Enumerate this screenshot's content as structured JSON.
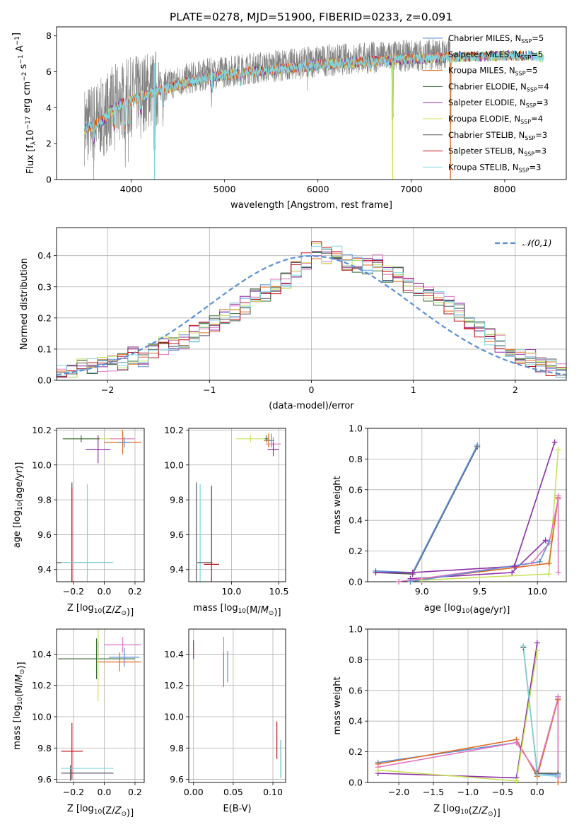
{
  "figure": {
    "title": "PLATE=0278, MJD=51900, FIBERID=0233, z=0.091"
  },
  "colors": {
    "chabrier_miles": "#5b8fd6",
    "salpeter_miles": "#e377c2",
    "kroupa_miles": "#e06a1c",
    "chabrier_elodie": "#3a6b3a",
    "salpeter_elodie": "#8e2fa6",
    "kroupa_elodie": "#c7e35a",
    "chabrier_stelib": "#555555",
    "salpeter_stelib": "#c0121a",
    "kroupa_stelib": "#7fd6e0",
    "data": "#808080",
    "normal": "#5b8fd6"
  },
  "chart_data": [
    {
      "id": "spectrum",
      "type": "line",
      "title": "PLATE=0278, MJD=51900, FIBERID=0233, z=0.091",
      "xlabel": "wavelength [Angstrom, rest frame]",
      "ylabel": "Flux [f_λ10^-17 erg cm^-2 s^-1 A^-1]",
      "xlim": [
        3200,
        8660
      ],
      "ylim": [
        0,
        8.5
      ],
      "xticks": [
        4000,
        5000,
        6000,
        7000,
        8000
      ],
      "yticks": [
        0,
        2,
        4,
        6,
        8
      ],
      "legend_position": "right",
      "legend": [
        {
          "key": "chabrier_miles",
          "label": "Chabrier MILES, N",
          "sub": "SSP",
          "n": "=5"
        },
        {
          "key": "salpeter_miles",
          "label": "Salpeter MILES, N",
          "sub": "SSP",
          "n": "=5"
        },
        {
          "key": "kroupa_miles",
          "label": "Kroupa MILES, N",
          "sub": "SSP",
          "n": "=5"
        },
        {
          "key": "chabrier_elodie",
          "label": "Chabrier ELODIE, N",
          "sub": "SSP",
          "n": "=4"
        },
        {
          "key": "salpeter_elodie",
          "label": "Salpeter ELODIE, N",
          "sub": "SSP",
          "n": "=3"
        },
        {
          "key": "kroupa_elodie",
          "label": "Kroupa ELODIE, N",
          "sub": "SSP",
          "n": "=4"
        },
        {
          "key": "chabrier_stelib",
          "label": "Chabrier STELIB, N",
          "sub": "SSP",
          "n": "=3"
        },
        {
          "key": "salpeter_stelib",
          "label": "Salpeter STELIB, N",
          "sub": "SSP",
          "n": "=3"
        },
        {
          "key": "kroupa_stelib",
          "label": "Kroupa STELIB, N",
          "sub": "SSP",
          "n": "=3"
        }
      ],
      "continuum": [
        [
          3500,
          3.0
        ],
        [
          3700,
          3.5
        ],
        [
          3800,
          4.1
        ],
        [
          3900,
          4.4
        ],
        [
          4000,
          4.6
        ],
        [
          4200,
          5.0
        ],
        [
          4400,
          5.3
        ],
        [
          4600,
          5.6
        ],
        [
          4800,
          5.85
        ],
        [
          5000,
          6.0
        ],
        [
          5200,
          6.15
        ],
        [
          5500,
          6.3
        ],
        [
          5800,
          6.45
        ],
        [
          6000,
          6.6
        ],
        [
          6300,
          6.7
        ],
        [
          6600,
          6.8
        ],
        [
          7000,
          6.9
        ],
        [
          7400,
          7.0
        ],
        [
          7700,
          7.05
        ],
        [
          8000,
          7.1
        ],
        [
          8300,
          7.1
        ],
        [
          8400,
          7.0
        ]
      ],
      "data_range": [
        3500,
        7420
      ],
      "model_range": [
        3500,
        8420
      ],
      "absorption_lines": [
        [
          3600,
          1.5
        ],
        [
          3820,
          1.8
        ],
        [
          3934,
          2.4
        ],
        [
          3970,
          2.0
        ],
        [
          4102,
          1.5
        ],
        [
          4250,
          6.0
        ],
        [
          4340,
          1.5
        ],
        [
          4861,
          1.2
        ],
        [
          5175,
          0.9
        ],
        [
          5890,
          0.8
        ],
        [
          6563,
          0.6
        ],
        [
          6800,
          6.2
        ],
        [
          7420,
          7.0
        ]
      ]
    },
    {
      "id": "residuals",
      "type": "histogram",
      "xlabel": "(data-model)/error",
      "ylabel": "Normed distribution",
      "xlim": [
        -2.5,
        2.5
      ],
      "ylim": [
        0,
        0.49
      ],
      "xticks": [
        -2,
        -1,
        0,
        1,
        2
      ],
      "yticks": [
        0.0,
        0.1,
        0.2,
        0.3,
        0.4
      ],
      "legend_position": "top-right",
      "normal_label": "𝒩(0,1)",
      "bins": 50,
      "base_profile": [
        0.02,
        0.03,
        0.04,
        0.04,
        0.05,
        0.05,
        0.06,
        0.08,
        0.07,
        0.09,
        0.11,
        0.12,
        0.13,
        0.15,
        0.16,
        0.18,
        0.2,
        0.22,
        0.24,
        0.28,
        0.28,
        0.3,
        0.32,
        0.36,
        0.38,
        0.42,
        0.4,
        0.41,
        0.38,
        0.37,
        0.37,
        0.38,
        0.34,
        0.34,
        0.3,
        0.3,
        0.28,
        0.26,
        0.24,
        0.22,
        0.18,
        0.16,
        0.14,
        0.12,
        0.1,
        0.08,
        0.07,
        0.05,
        0.04,
        0.03
      ]
    },
    {
      "id": "age_vs_Z",
      "type": "errorbar",
      "xlabel": "Z [log10(Z/Z⊙)]",
      "ylabel": "age [log10(age/yr)]",
      "xlim": [
        -0.31,
        0.26
      ],
      "ylim": [
        9.33,
        10.21
      ],
      "xticks": [
        -0.2,
        0.0,
        0.2
      ],
      "yticks": [
        9.4,
        9.6,
        9.8,
        10.0,
        10.2
      ],
      "points": [
        {
          "key": "kroupa_elodie",
          "x": -0.04,
          "y": 10.15,
          "xerr": 0.22,
          "yerr": 0.02
        },
        {
          "key": "salpeter_miles",
          "x": 0.12,
          "y": 10.15,
          "xerr": 0.08,
          "yerr": 0.04
        },
        {
          "key": "kroupa_miles",
          "x": 0.12,
          "y": 10.13,
          "xerr": 0.12,
          "yerr": 0.07
        },
        {
          "key": "chabrier_elodie",
          "x": -0.15,
          "y": 10.15,
          "xerr": 0.12,
          "yerr": 0.02
        },
        {
          "key": "salpeter_elodie",
          "x": -0.04,
          "y": 10.09,
          "xerr": 0.08,
          "yerr": 0.08
        },
        {
          "key": "chabrier_miles",
          "x": 0.13,
          "y": 10.13,
          "xerr": 0.04,
          "yerr": 0.03
        },
        {
          "key": "chabrier_stelib",
          "x": -0.21,
          "y": 9.44,
          "xerr": 0.26,
          "yerr": 0.46
        },
        {
          "key": "salpeter_stelib",
          "x": -0.21,
          "y": 9.44,
          "xerr": 0.0,
          "yerr": 0.43
        },
        {
          "key": "kroupa_stelib",
          "x": -0.11,
          "y": 9.44,
          "xerr": 0.17,
          "yerr": 0.45
        }
      ]
    },
    {
      "id": "age_vs_mass",
      "type": "errorbar",
      "xlabel": "mass [log10(M/M⊙)]",
      "ylabel": "",
      "xlim": [
        9.55,
        10.57
      ],
      "ylim": [
        9.33,
        10.21
      ],
      "xticks": [
        10.0,
        10.5
      ],
      "yticks": [
        9.4,
        9.6,
        9.8,
        10.0,
        10.2
      ],
      "points": [
        {
          "key": "kroupa_elodie",
          "x": 10.2,
          "y": 10.15,
          "xerr": 0.15,
          "yerr": 0.02
        },
        {
          "key": "chabrier_elodie",
          "x": 10.37,
          "y": 10.15,
          "xerr": 0.02,
          "yerr": 0.02
        },
        {
          "key": "salpeter_miles",
          "x": 10.44,
          "y": 10.12,
          "xerr": 0.08,
          "yerr": 0.04
        },
        {
          "key": "kroupa_miles",
          "x": 10.39,
          "y": 10.14,
          "xerr": 0.05,
          "yerr": 0.04
        },
        {
          "key": "salpeter_elodie",
          "x": 10.44,
          "y": 10.09,
          "xerr": 0.06,
          "yerr": 0.04
        },
        {
          "key": "chabrier_miles",
          "x": 10.42,
          "y": 10.14,
          "xerr": 0.03,
          "yerr": 0.04
        },
        {
          "key": "chabrier_stelib",
          "x": 9.63,
          "y": 9.44,
          "xerr": 0.0,
          "yerr": 0.46
        },
        {
          "key": "kroupa_stelib",
          "x": 9.67,
          "y": 9.44,
          "xerr": 0.0,
          "yerr": 0.45
        },
        {
          "key": "salpeter_stelib",
          "x": 9.79,
          "y": 9.43,
          "xerr": 0.08,
          "yerr": 0.45
        },
        {
          "key": "chabrier_stelib",
          "x": 9.72,
          "y": 9.44,
          "xerr": 0.08,
          "yerr": 0.0
        }
      ]
    },
    {
      "id": "mass_weight_vs_age",
      "type": "line",
      "xlabel": "age [log10(age/yr)]",
      "ylabel": "mass weight",
      "xlim": [
        8.53,
        10.25
      ],
      "ylim": [
        0,
        1
      ],
      "xticks": [
        9.0,
        9.5,
        10.0
      ],
      "yticks": [
        0.0,
        0.2,
        0.4,
        0.6,
        0.8,
        1.0
      ],
      "series": [
        {
          "key": "chabrier_stelib",
          "x": [
            8.6,
            8.92,
            9.48
          ],
          "y": [
            0.06,
            0.05,
            0.88
          ]
        },
        {
          "key": "kroupa_stelib",
          "x": [
            8.6,
            8.92,
            9.48
          ],
          "y": [
            0.07,
            0.06,
            0.89
          ]
        },
        {
          "key": "chabrier_miles",
          "x": [
            8.6,
            8.92,
            9.48
          ],
          "y": [
            0.07,
            0.06,
            0.89
          ]
        },
        {
          "key": "salpeter_elodie",
          "x": [
            8.6,
            8.92,
            9.8,
            10.15
          ],
          "y": [
            0.06,
            0.06,
            0.1,
            0.91
          ]
        },
        {
          "key": "salpeter_elodie",
          "x": [
            8.9,
            9.78,
            10.07
          ],
          "y": [
            0.02,
            0.06,
            0.27
          ]
        },
        {
          "key": "kroupa_elodie",
          "x": [
            9.0,
            10.1,
            10.18
          ],
          "y": [
            0.01,
            0.05,
            0.86
          ]
        },
        {
          "key": "kroupa_miles",
          "x": [
            8.8,
            10.1,
            10.18
          ],
          "y": [
            0.0,
            0.12,
            0.55
          ]
        },
        {
          "key": "salpeter_miles",
          "x": [
            8.8,
            9.95,
            10.1,
            10.18
          ],
          "y": [
            0.0,
            0.12,
            0.25,
            0.54
          ]
        },
        {
          "key": "chabrier_miles",
          "x": [
            8.9,
            10.02,
            10.1
          ],
          "y": [
            0.0,
            0.13,
            0.26
          ]
        },
        {
          "key": "salpeter_miles",
          "x": [
            10.18,
            10.18
          ],
          "y": [
            0.56,
            0.06
          ]
        }
      ]
    },
    {
      "id": "mass_vs_Z",
      "type": "errorbar",
      "xlabel": "Z [log10(Z/Z⊙)]",
      "ylabel": "mass [log10(M/M⊙)]",
      "xlim": [
        -0.31,
        0.26
      ],
      "ylim": [
        9.58,
        10.56
      ],
      "xticks": [
        -0.2,
        0.0,
        0.2
      ],
      "yticks": [
        9.6,
        9.8,
        10.0,
        10.2,
        10.4
      ],
      "points": [
        {
          "key": "salpeter_miles",
          "x": 0.12,
          "y": 10.46,
          "xerr": 0.12,
          "yerr": 0.05
        },
        {
          "key": "salpeter_elodie",
          "x": -0.04,
          "y": 10.43,
          "xerr": 0.0,
          "yerr": 0.05
        },
        {
          "key": "chabrier_elodie",
          "x": -0.05,
          "y": 10.37,
          "xerr": 0.25,
          "yerr": 0.13
        },
        {
          "key": "kroupa_elodie",
          "x": -0.04,
          "y": 10.37,
          "xerr": 0.0,
          "yerr": 0.27
        },
        {
          "key": "chabrier_miles",
          "x": 0.13,
          "y": 10.38,
          "xerr": 0.1,
          "yerr": 0.06
        },
        {
          "key": "kroupa_miles",
          "x": 0.1,
          "y": 10.35,
          "xerr": 0.14,
          "yerr": 0.06
        },
        {
          "key": "salpeter_stelib",
          "x": -0.21,
          "y": 9.78,
          "xerr": 0.07,
          "yerr": 0.18
        },
        {
          "key": "chabrier_stelib",
          "x": -0.22,
          "y": 9.64,
          "xerr": 0.0,
          "yerr": 0.05
        },
        {
          "key": "kroupa_stelib",
          "x": -0.11,
          "y": 9.67,
          "xerr": 0.17,
          "yerr": 0.0
        },
        {
          "key": "chabrier_stelib",
          "x": -0.11,
          "y": 9.64,
          "xerr": 0.17,
          "yerr": 0.0
        }
      ]
    },
    {
      "id": "mass_vs_ebv",
      "type": "errorbar",
      "xlabel": "E(B-V)",
      "ylabel": "",
      "xlim": [
        -0.006,
        0.116
      ],
      "ylim": [
        9.58,
        10.56
      ],
      "xticks": [
        0.0,
        0.05,
        0.1
      ],
      "yticks": [
        9.6,
        9.8,
        10.0,
        10.2,
        10.4
      ],
      "points": [
        {
          "key": "kroupa_elodie",
          "x": 0.0,
          "y": 10.3,
          "xerr": 0.0,
          "yerr": 0.2
        },
        {
          "key": "salpeter_elodie",
          "x": 0.0,
          "y": 10.43,
          "xerr": 0.0,
          "yerr": 0.06
        },
        {
          "key": "salpeter_miles",
          "x": 0.038,
          "y": 10.36,
          "xerr": 0.0,
          "yerr": 0.15
        },
        {
          "key": "kroupa_miles",
          "x": 0.038,
          "y": 10.3,
          "xerr": 0.0,
          "yerr": 0.11
        },
        {
          "key": "chabrier_miles",
          "x": 0.043,
          "y": 10.32,
          "xerr": 0.0,
          "yerr": 0.1
        },
        {
          "key": "salpeter_stelib",
          "x": 0.105,
          "y": 9.85,
          "xerr": 0.0,
          "yerr": 0.12
        },
        {
          "key": "chabrier_stelib",
          "x": 0.11,
          "y": 9.73,
          "xerr": 0.0,
          "yerr": 0.12
        },
        {
          "key": "kroupa_stelib",
          "x": 0.11,
          "y": 9.73,
          "xerr": 0.0,
          "yerr": 0.12
        }
      ]
    },
    {
      "id": "mass_weight_vs_Z",
      "type": "line",
      "xlabel": "Z [log10(Z/Z⊙)]",
      "ylabel": "mass weight",
      "xlim": [
        -2.45,
        0.42
      ],
      "ylim": [
        0,
        1
      ],
      "xticks": [
        -2.0,
        -1.5,
        -1.0,
        -0.5,
        0.0
      ],
      "yticks": [
        0.0,
        0.2,
        0.4,
        0.6,
        0.8,
        1.0
      ],
      "series": [
        {
          "key": "chabrier_miles",
          "x": [
            -2.3,
            -0.3,
            0.0,
            0.3
          ],
          "y": [
            0.13,
            0.26,
            0.06,
            0.05
          ]
        },
        {
          "key": "kroupa_miles",
          "x": [
            -2.3,
            -0.3,
            0.0,
            0.3
          ],
          "y": [
            0.12,
            0.28,
            0.04,
            0.54
          ]
        },
        {
          "key": "salpeter_miles",
          "x": [
            -2.3,
            -0.3,
            0.0,
            0.3
          ],
          "y": [
            0.1,
            0.26,
            0.06,
            0.55
          ]
        },
        {
          "key": "salpeter_elodie",
          "x": [
            -2.3,
            -0.3,
            0.0
          ],
          "y": [
            0.06,
            0.03,
            0.91
          ]
        },
        {
          "key": "kroupa_elodie",
          "x": [
            -2.3,
            -0.3,
            0.0
          ],
          "y": [
            0.08,
            0.01,
            0.86
          ]
        },
        {
          "key": "chabrier_stelib",
          "x": [
            -0.2,
            0.0,
            0.3
          ],
          "y": [
            0.88,
            0.06,
            0.06
          ]
        },
        {
          "key": "kroupa_stelib",
          "x": [
            -0.2,
            0.0,
            0.3
          ],
          "y": [
            0.89,
            0.05,
            0.04
          ]
        },
        {
          "key": "kroupa_miles",
          "x": [
            0.3,
            0.3
          ],
          "y": [
            0.54,
            0.0
          ]
        },
        {
          "key": "salpeter_miles",
          "x": [
            0.3,
            0.3
          ],
          "y": [
            0.56,
            0.03
          ]
        }
      ]
    }
  ]
}
